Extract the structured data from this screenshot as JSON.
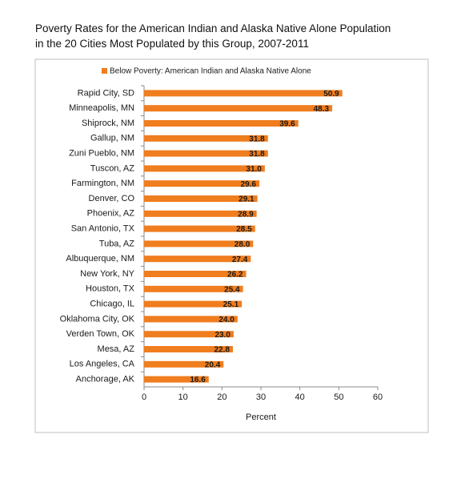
{
  "chart_data": {
    "type": "bar",
    "title_lines": [
      "Poverty Rates for the American Indian and Alaska Native Alone Population",
      "in the 20 Cities Most Populated by this Group, 2007-2011"
    ],
    "categories": [
      "Rapid City, SD",
      "Minneapolis, MN",
      "Shiprock, NM",
      "Gallup, NM",
      "Zuni Pueblo, NM",
      "Tuscon, AZ",
      "Farmington, NM",
      "Denver, CO",
      "Phoenix, AZ",
      "San Antonio, TX",
      "Tuba, AZ",
      "Albuquerque, NM",
      "New York, NY",
      "Houston, TX",
      "Chicago, IL",
      "Oklahoma City, OK",
      "Verden Town, OK",
      "Mesa, AZ",
      "Los Angeles, CA",
      "Anchorage, AK"
    ],
    "series": [
      {
        "name": "Below Poverty:  American Indian and Alaska Native Alone",
        "color": "#f07d1e",
        "values": [
          50.9,
          48.3,
          39.6,
          31.8,
          31.8,
          31.0,
          29.6,
          29.1,
          28.9,
          28.5,
          28.0,
          27.4,
          26.2,
          25.4,
          25.1,
          24.0,
          23.0,
          22.8,
          20.4,
          16.6
        ],
        "value_labels": [
          "50.9",
          "48.3",
          "39.6",
          "31.8",
          "31.8",
          "31.0",
          "29.6",
          "29.1",
          "28.9",
          "28.5",
          "28.0",
          "27.4",
          "26.2",
          "25.4",
          "25.1",
          "24.0",
          "23.0",
          "22.8",
          "20.4",
          "16.6"
        ]
      }
    ],
    "xlabel": "Percent",
    "xlim": [
      0,
      60
    ],
    "xticks": [
      0,
      10,
      20,
      30,
      40,
      50,
      60
    ],
    "legend": "top"
  }
}
